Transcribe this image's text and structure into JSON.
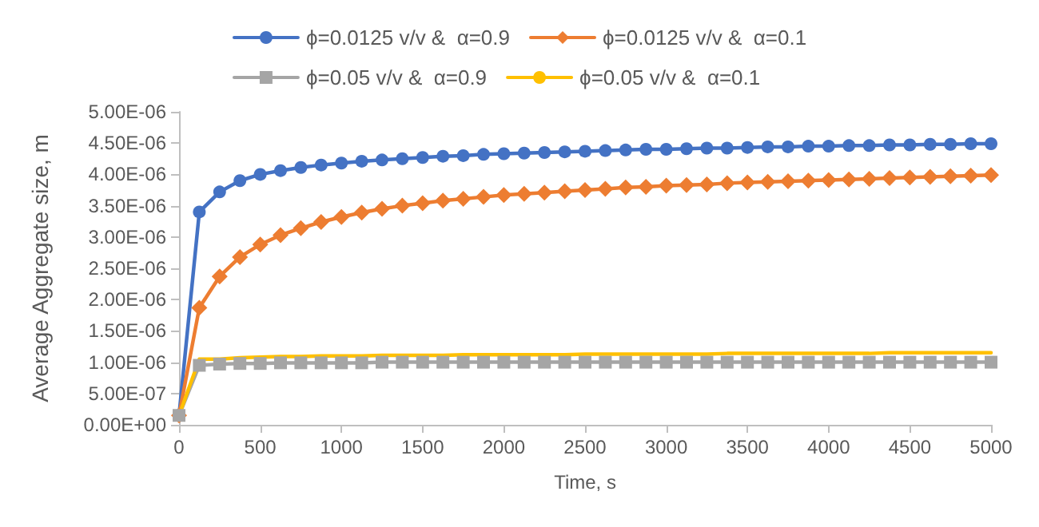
{
  "chart_data": {
    "type": "line",
    "xlabel": "Time, s",
    "ylabel": "Average Aggregate size, m",
    "legend": "top",
    "grid": false,
    "x": [
      0,
      125,
      250,
      375,
      500,
      625,
      750,
      875,
      1000,
      1125,
      1250,
      1375,
      1500,
      1625,
      1750,
      1875,
      2000,
      2125,
      2250,
      2375,
      2500,
      2625,
      2750,
      2875,
      3000,
      3125,
      3250,
      3375,
      3500,
      3625,
      3750,
      3875,
      4000,
      4125,
      4250,
      4375,
      4500,
      4625,
      4750,
      4875,
      5000
    ],
    "xlim": [
      0,
      5000
    ],
    "xticks": [
      0,
      500,
      1000,
      1500,
      2000,
      2500,
      3000,
      3500,
      4000,
      4500,
      5000
    ],
    "ylim": [
      0,
      5e-06
    ],
    "yticks": [
      {
        "value": 0,
        "label": "0.00E+00"
      },
      {
        "value": 5e-07,
        "label": "5.00E-07"
      },
      {
        "value": 1e-06,
        "label": "1.00E-06"
      },
      {
        "value": 1.5e-06,
        "label": "1.50E-06"
      },
      {
        "value": 2e-06,
        "label": "2.00E-06"
      },
      {
        "value": 2.5e-06,
        "label": "2.50E-06"
      },
      {
        "value": 3e-06,
        "label": "3.00E-06"
      },
      {
        "value": 3.5e-06,
        "label": "3.50E-06"
      },
      {
        "value": 4e-06,
        "label": "4.00E-06"
      },
      {
        "value": 4.5e-06,
        "label": "4.50E-06"
      },
      {
        "value": 5e-06,
        "label": "5.00E-06"
      }
    ],
    "series": [
      {
        "name": "ϕ=0.0125 v/v &  α=0.9",
        "color": "#4472c4",
        "marker": "circle",
        "values": [
          1.5e-07,
          3.4e-06,
          3.72e-06,
          3.9e-06,
          4e-06,
          4.06e-06,
          4.11e-06,
          4.15e-06,
          4.18e-06,
          4.21e-06,
          4.23e-06,
          4.25e-06,
          4.27e-06,
          4.29e-06,
          4.3e-06,
          4.32e-06,
          4.33e-06,
          4.34e-06,
          4.35e-06,
          4.36e-06,
          4.37e-06,
          4.38e-06,
          4.39e-06,
          4.4e-06,
          4.4e-06,
          4.41e-06,
          4.42e-06,
          4.42e-06,
          4.43e-06,
          4.44e-06,
          4.44e-06,
          4.45e-06,
          4.45e-06,
          4.46e-06,
          4.46e-06,
          4.47e-06,
          4.47e-06,
          4.48e-06,
          4.48e-06,
          4.49e-06,
          4.49e-06
        ]
      },
      {
        "name": "ϕ=0.0125 v/v &  α=0.1",
        "color": "#ed7d31",
        "marker": "diamond",
        "values": [
          1.5e-07,
          1.87e-06,
          2.37e-06,
          2.68e-06,
          2.88e-06,
          3.03e-06,
          3.14e-06,
          3.24e-06,
          3.32e-06,
          3.39e-06,
          3.45e-06,
          3.5e-06,
          3.54e-06,
          3.58e-06,
          3.61e-06,
          3.64e-06,
          3.67e-06,
          3.69e-06,
          3.71e-06,
          3.73e-06,
          3.75e-06,
          3.77e-06,
          3.79e-06,
          3.8e-06,
          3.82e-06,
          3.83e-06,
          3.84e-06,
          3.86e-06,
          3.87e-06,
          3.88e-06,
          3.89e-06,
          3.9e-06,
          3.91e-06,
          3.92e-06,
          3.93e-06,
          3.94e-06,
          3.95e-06,
          3.96e-06,
          3.97e-06,
          3.98e-06,
          3.99e-06
        ]
      },
      {
        "name": "ϕ=0.05 v/v &  α=0.9",
        "color": "#a5a5a5",
        "marker": "square",
        "values": [
          1.5e-07,
          9.5e-07,
          9.7e-07,
          9.8e-07,
          9.8e-07,
          9.9e-07,
          9.9e-07,
          9.9e-07,
          9.9e-07,
          9.9e-07,
          1e-06,
          1e-06,
          1e-06,
          1e-06,
          1e-06,
          1e-06,
          1e-06,
          1e-06,
          1e-06,
          1e-06,
          1e-06,
          1e-06,
          1e-06,
          1e-06,
          1e-06,
          1e-06,
          1e-06,
          1e-06,
          1e-06,
          1e-06,
          1e-06,
          1e-06,
          1e-06,
          1e-06,
          1e-06,
          1e-06,
          1e-06,
          1e-06,
          1e-06,
          1e-06,
          1e-06
        ]
      },
      {
        "name": "ϕ=0.05 v/v &  α=0.1",
        "color": "#ffc000",
        "marker": "none",
        "values": [
          1.5e-07,
          1.05e-06,
          1.05e-06,
          1.07e-06,
          1.08e-06,
          1.09e-06,
          1.09e-06,
          1.1e-06,
          1.1e-06,
          1.1e-06,
          1.11e-06,
          1.11e-06,
          1.11e-06,
          1.11e-06,
          1.12e-06,
          1.12e-06,
          1.12e-06,
          1.12e-06,
          1.12e-06,
          1.12e-06,
          1.13e-06,
          1.13e-06,
          1.13e-06,
          1.13e-06,
          1.13e-06,
          1.13e-06,
          1.13e-06,
          1.14e-06,
          1.14e-06,
          1.14e-06,
          1.14e-06,
          1.14e-06,
          1.14e-06,
          1.14e-06,
          1.14e-06,
          1.15e-06,
          1.15e-06,
          1.15e-06,
          1.15e-06,
          1.15e-06,
          1.15e-06
        ]
      }
    ]
  }
}
